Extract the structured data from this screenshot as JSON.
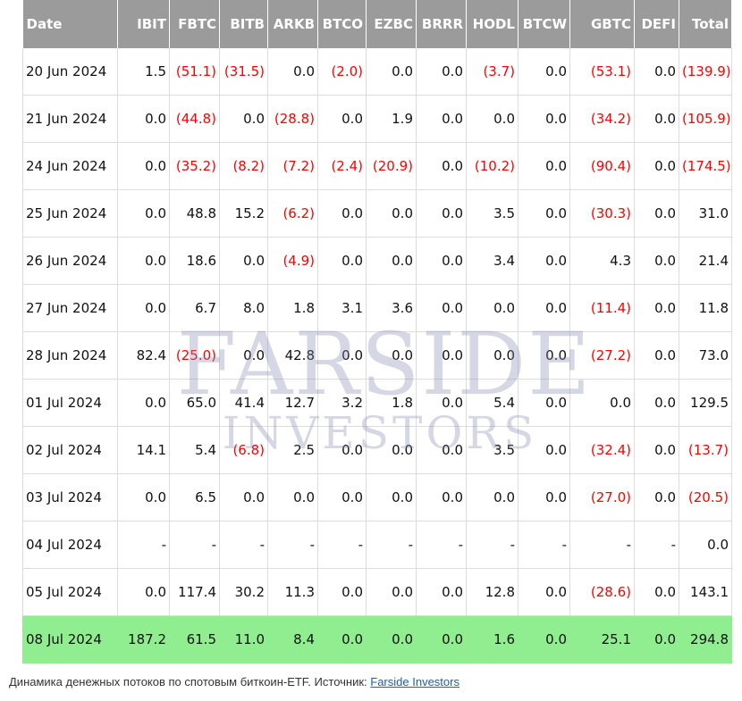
{
  "table": {
    "headers": [
      "Date",
      "IBIT",
      "FBTC",
      "BITB",
      "ARKB",
      "BTCO",
      "EZBC",
      "BRRR",
      "HODL",
      "BTCW",
      "GBTC",
      "DEFI",
      "Total"
    ],
    "rows": [
      [
        "20 Jun 2024",
        "1.5",
        "(51.1)",
        "(31.5)",
        "0.0",
        "(2.0)",
        "0.0",
        "0.0",
        "(3.7)",
        "0.0",
        "(53.1)",
        "0.0",
        "(139.9)"
      ],
      [
        "21 Jun 2024",
        "0.0",
        "(44.8)",
        "0.0",
        "(28.8)",
        "0.0",
        "1.9",
        "0.0",
        "0.0",
        "0.0",
        "(34.2)",
        "0.0",
        "(105.9)"
      ],
      [
        "24 Jun 2024",
        "0.0",
        "(35.2)",
        "(8.2)",
        "(7.2)",
        "(2.4)",
        "(20.9)",
        "0.0",
        "(10.2)",
        "0.0",
        "(90.4)",
        "0.0",
        "(174.5)"
      ],
      [
        "25 Jun 2024",
        "0.0",
        "48.8",
        "15.2",
        "(6.2)",
        "0.0",
        "0.0",
        "0.0",
        "3.5",
        "0.0",
        "(30.3)",
        "0.0",
        "31.0"
      ],
      [
        "26 Jun 2024",
        "0.0",
        "18.6",
        "0.0",
        "(4.9)",
        "0.0",
        "0.0",
        "0.0",
        "3.4",
        "0.0",
        "4.3",
        "0.0",
        "21.4"
      ],
      [
        "27 Jun 2024",
        "0.0",
        "6.7",
        "8.0",
        "1.8",
        "3.1",
        "3.6",
        "0.0",
        "0.0",
        "0.0",
        "(11.4)",
        "0.0",
        "11.8"
      ],
      [
        "28 Jun 2024",
        "82.4",
        "(25.0)",
        "0.0",
        "42.8",
        "0.0",
        "0.0",
        "0.0",
        "0.0",
        "0.0",
        "(27.2)",
        "0.0",
        "73.0"
      ],
      [
        "01 Jul 2024",
        "0.0",
        "65.0",
        "41.4",
        "12.7",
        "3.2",
        "1.8",
        "0.0",
        "5.4",
        "0.0",
        "0.0",
        "0.0",
        "129.5"
      ],
      [
        "02 Jul 2024",
        "14.1",
        "5.4",
        "(6.8)",
        "2.5",
        "0.0",
        "0.0",
        "0.0",
        "3.5",
        "0.0",
        "(32.4)",
        "0.0",
        "(13.7)"
      ],
      [
        "03 Jul 2024",
        "0.0",
        "6.5",
        "0.0",
        "0.0",
        "0.0",
        "0.0",
        "0.0",
        "0.0",
        "0.0",
        "(27.0)",
        "0.0",
        "(20.5)"
      ],
      [
        "04 Jul 2024",
        "-",
        "-",
        "-",
        "-",
        "-",
        "-",
        "-",
        "-",
        "-",
        "-",
        "-",
        "0.0"
      ],
      [
        "05 Jul 2024",
        "0.0",
        "117.4",
        "30.2",
        "11.3",
        "0.0",
        "0.0",
        "0.0",
        "12.8",
        "0.0",
        "(28.6)",
        "0.0",
        "143.1"
      ],
      [
        "08 Jul 2024",
        "187.2",
        "61.5",
        "11.0",
        "8.4",
        "0.0",
        "0.0",
        "0.0",
        "1.6",
        "0.0",
        "25.1",
        "0.0",
        "294.8"
      ]
    ],
    "highlight_row_index": 12
  },
  "colors": {
    "header_bg": "#9b9b9b",
    "negative": "#ff0000",
    "highlight": "#90ee90"
  },
  "watermark": {
    "main": "FARSIDE",
    "sub": "INVESTORS"
  },
  "caption": {
    "text": "Динамика денежных потоков по спотовым биткоин-ETF. Источник: ",
    "link_text": "Farside Investors"
  }
}
